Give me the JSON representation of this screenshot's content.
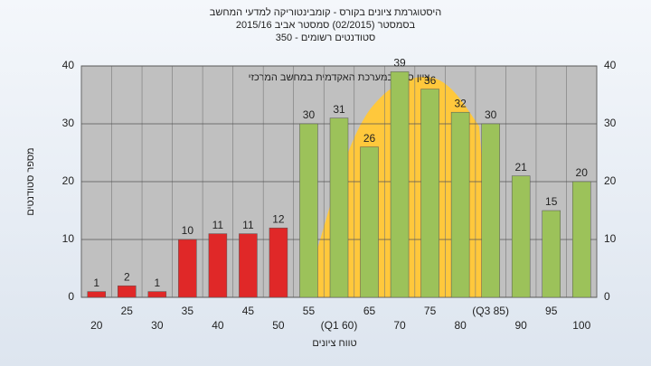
{
  "chart_data": {
    "type": "bar",
    "title": "היסטוגרמת ציונים בקורס - קומבינטוריקה למדעי המחשב",
    "subtitle": "בסמסטר  (02/2015)  סמסטר אביב 2015/16",
    "subtitle2": "סטודנטים רשומים - 350",
    "annotation": "ציון סופי במערכת האקדמית במחשב המרכזי",
    "xlabel": "טווח ציונים",
    "ylabel": "מספר סטודנטים",
    "categories": [
      "20",
      "25",
      "30",
      "35",
      "40",
      "45",
      "50",
      "55",
      "(Q1 60)",
      "65",
      "70",
      "75",
      "80",
      "(Q3 85)",
      "90",
      "95",
      "100"
    ],
    "values": [
      1,
      2,
      1,
      10,
      11,
      11,
      12,
      30,
      31,
      26,
      39,
      36,
      32,
      30,
      21,
      15,
      20
    ],
    "colors": [
      "#e02828",
      "#e02828",
      "#e02828",
      "#e02828",
      "#e02828",
      "#e02828",
      "#e02828",
      "#9cc25a",
      "#9cc25a",
      "#9cc25a",
      "#9cc25a",
      "#9cc25a",
      "#9cc25a",
      "#9cc25a",
      "#9cc25a",
      "#9cc25a",
      "#9cc25a"
    ],
    "ylim": [
      0,
      40
    ],
    "yticks": [
      0,
      10,
      20,
      30,
      40
    ],
    "grid": true
  }
}
